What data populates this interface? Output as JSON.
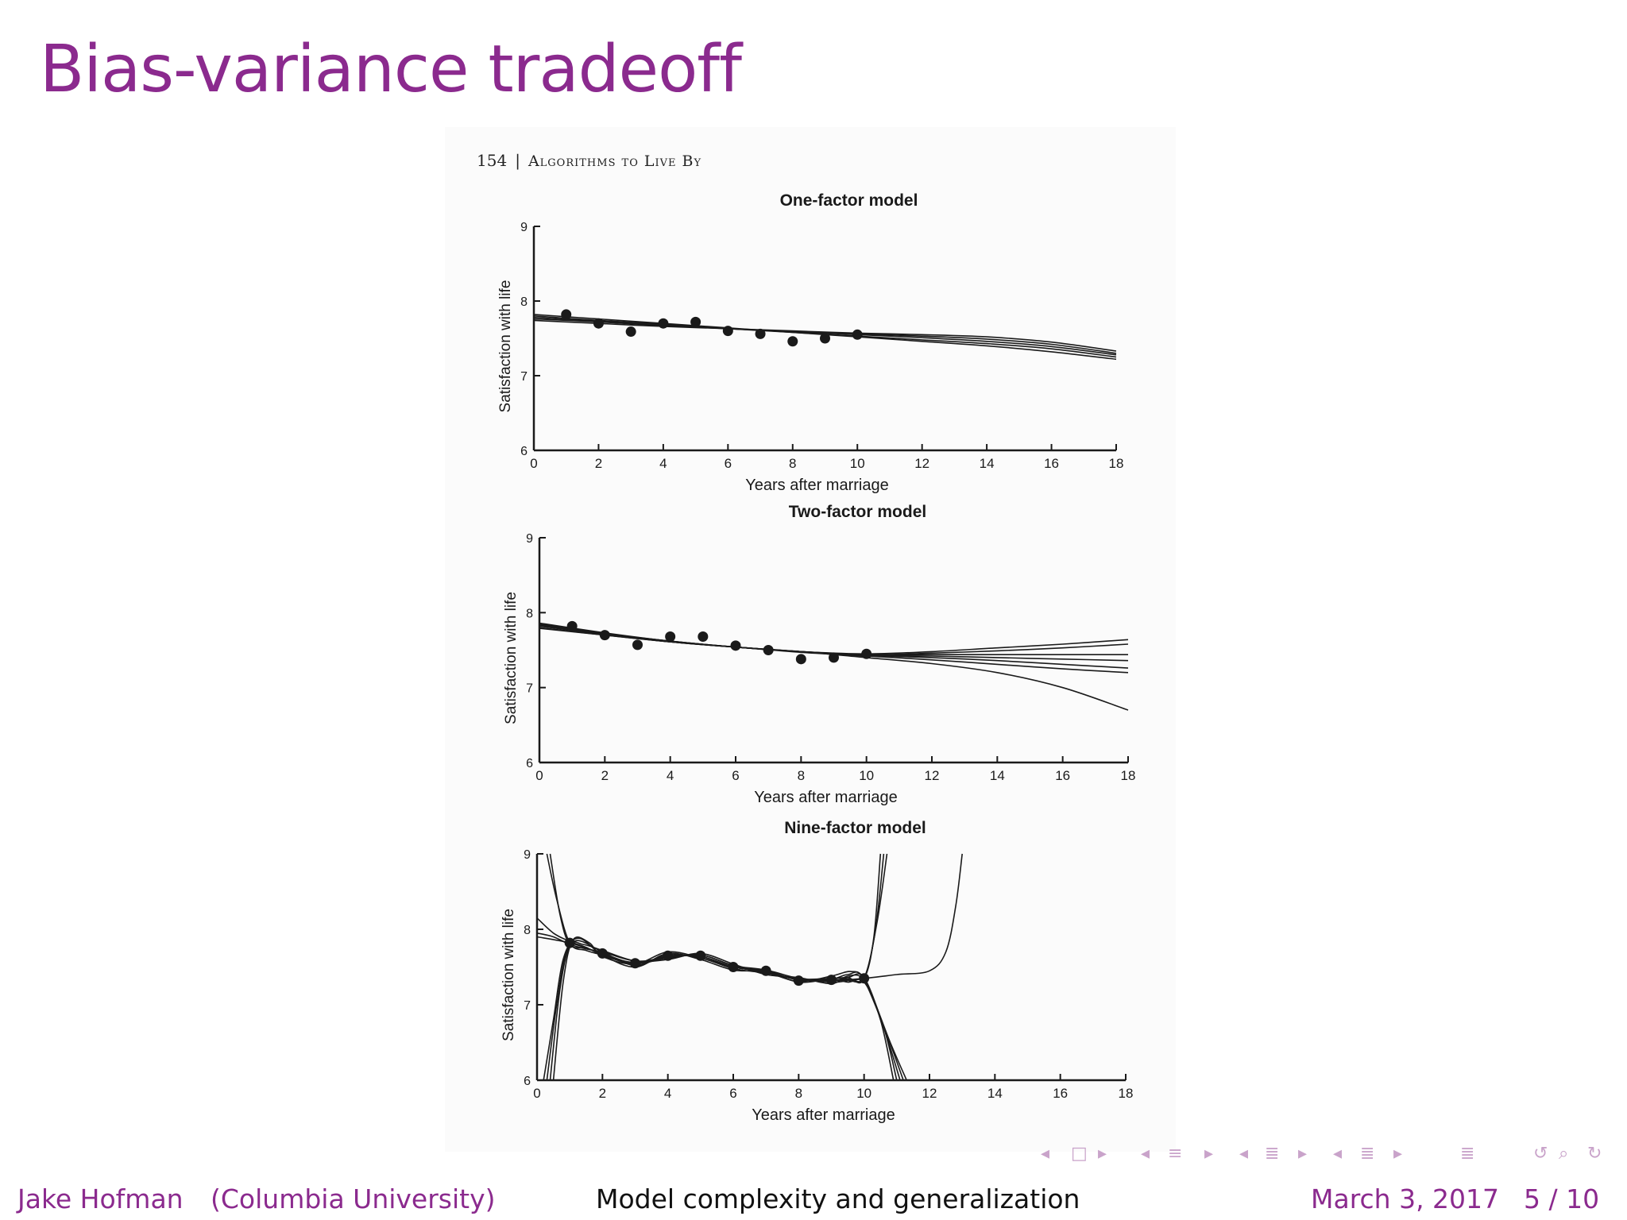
{
  "slide": {
    "title": "Bias-variance tradeoff"
  },
  "book_page": {
    "page_number": "154",
    "separator": "|",
    "running_head": "Algorithms to Live By"
  },
  "colors": {
    "accent": "#8b2a8e",
    "ink": "#1a1a1a",
    "nav": "#c9a3ca"
  },
  "nav_icons": [
    "arrow-left-icon",
    "frame-icon",
    "arrow-right-icon",
    "arrow-left-icon",
    "subsection-icon",
    "arrow-right-icon",
    "arrow-left-icon",
    "section-icon",
    "arrow-right-icon",
    "arrow-left-icon",
    "outline-icon",
    "arrow-right-icon",
    "outline-icon",
    "undo-icon",
    "search-icon",
    "redo-icon"
  ],
  "footer": {
    "author": "Jake Hofman",
    "institution": "(Columbia University)",
    "talk_title": "Model complexity and generalization",
    "date": "March 3, 2017",
    "page": "5 / 10"
  },
  "chart_data": [
    {
      "type": "line",
      "title": "One-factor model",
      "xlabel": "Years after marriage",
      "ylabel": "Satisfaction with life",
      "xlim": [
        0,
        18
      ],
      "ylim": [
        6,
        9
      ],
      "xticks": [
        0,
        2,
        4,
        6,
        8,
        10,
        12,
        14,
        16,
        18
      ],
      "yticks": [
        6,
        7,
        8,
        9
      ],
      "points": {
        "x": [
          1,
          2,
          3,
          4,
          5,
          6,
          7,
          8,
          9,
          10
        ],
        "y": [
          7.82,
          7.7,
          7.59,
          7.7,
          7.72,
          7.6,
          7.56,
          7.46,
          7.5,
          7.55
        ]
      },
      "fits": [
        {
          "x": [
            0,
            2,
            4,
            6,
            8,
            10,
            12,
            14,
            16,
            18
          ],
          "y": [
            7.82,
            7.76,
            7.7,
            7.64,
            7.58,
            7.52,
            7.46,
            7.4,
            7.32,
            7.22
          ]
        },
        {
          "x": [
            0,
            2,
            4,
            6,
            8,
            10,
            12,
            14,
            16,
            18
          ],
          "y": [
            7.8,
            7.74,
            7.69,
            7.63,
            7.58,
            7.53,
            7.48,
            7.43,
            7.36,
            7.25
          ]
        },
        {
          "x": [
            0,
            2,
            4,
            6,
            8,
            10,
            12,
            14,
            16,
            18
          ],
          "y": [
            7.78,
            7.73,
            7.68,
            7.63,
            7.59,
            7.55,
            7.51,
            7.46,
            7.39,
            7.28
          ]
        },
        {
          "x": [
            0,
            2,
            4,
            6,
            8,
            10,
            12,
            14,
            16,
            18
          ],
          "y": [
            7.76,
            7.72,
            7.67,
            7.63,
            7.59,
            7.56,
            7.53,
            7.49,
            7.42,
            7.3
          ]
        },
        {
          "x": [
            0,
            2,
            4,
            6,
            8,
            10,
            12,
            14,
            16,
            18
          ],
          "y": [
            7.74,
            7.7,
            7.66,
            7.63,
            7.6,
            7.57,
            7.55,
            7.52,
            7.45,
            7.33
          ]
        }
      ]
    },
    {
      "type": "line",
      "title": "Two-factor model",
      "xlabel": "Years after marriage",
      "ylabel": "Satisfaction with life",
      "xlim": [
        0,
        18
      ],
      "ylim": [
        6,
        9
      ],
      "xticks": [
        0,
        2,
        4,
        6,
        8,
        10,
        12,
        14,
        16,
        18
      ],
      "yticks": [
        6,
        7,
        8,
        9
      ],
      "points": {
        "x": [
          1,
          2,
          3,
          4,
          5,
          6,
          7,
          8,
          9,
          10
        ],
        "y": [
          7.82,
          7.7,
          7.57,
          7.68,
          7.68,
          7.56,
          7.5,
          7.38,
          7.4,
          7.45
        ]
      },
      "fits": [
        {
          "x": [
            0,
            2,
            4,
            6,
            8,
            10,
            12,
            14,
            16,
            18
          ],
          "y": [
            7.86,
            7.73,
            7.62,
            7.54,
            7.48,
            7.45,
            7.48,
            7.53,
            7.58,
            7.64
          ]
        },
        {
          "x": [
            0,
            2,
            4,
            6,
            8,
            10,
            12,
            14,
            16,
            18
          ],
          "y": [
            7.85,
            7.72,
            7.62,
            7.54,
            7.48,
            7.44,
            7.46,
            7.49,
            7.53,
            7.58
          ]
        },
        {
          "x": [
            0,
            2,
            4,
            6,
            8,
            10,
            12,
            14,
            16,
            18
          ],
          "y": [
            7.84,
            7.72,
            7.62,
            7.54,
            7.48,
            7.44,
            7.44,
            7.44,
            7.44,
            7.44
          ]
        },
        {
          "x": [
            0,
            2,
            4,
            6,
            8,
            10,
            12,
            14,
            16,
            18
          ],
          "y": [
            7.83,
            7.71,
            7.61,
            7.54,
            7.48,
            7.43,
            7.42,
            7.4,
            7.38,
            7.36
          ]
        },
        {
          "x": [
            0,
            2,
            4,
            6,
            8,
            10,
            12,
            14,
            16,
            18
          ],
          "y": [
            7.82,
            7.71,
            7.61,
            7.54,
            7.48,
            7.43,
            7.4,
            7.36,
            7.31,
            7.26
          ]
        },
        {
          "x": [
            0,
            2,
            4,
            6,
            8,
            10,
            12,
            14,
            16,
            18
          ],
          "y": [
            7.8,
            7.7,
            7.61,
            7.54,
            7.48,
            7.4,
            7.32,
            7.2,
            7.0,
            6.7
          ]
        },
        {
          "x": [
            0,
            2,
            4,
            6,
            8,
            10,
            12,
            14,
            16,
            18
          ],
          "y": [
            7.79,
            7.7,
            7.61,
            7.54,
            7.47,
            7.42,
            7.37,
            7.31,
            7.25,
            7.2
          ]
        }
      ]
    },
    {
      "type": "line",
      "title": "Nine-factor model",
      "xlabel": "Years after marriage",
      "ylabel": "Satisfaction with life",
      "xlim": [
        0,
        18
      ],
      "ylim": [
        6,
        9
      ],
      "xticks": [
        0,
        2,
        4,
        6,
        8,
        10,
        12,
        14,
        16,
        18
      ],
      "yticks": [
        6,
        7,
        8,
        9
      ],
      "points": {
        "x": [
          1,
          2,
          3,
          4,
          5,
          6,
          7,
          8,
          9,
          10
        ],
        "y": [
          7.82,
          7.68,
          7.55,
          7.65,
          7.65,
          7.5,
          7.45,
          7.32,
          7.33,
          7.35
        ]
      },
      "fits": [
        {
          "x": [
            0.3,
            0.6,
            1,
            1.5,
            2,
            3,
            4,
            5,
            6,
            7,
            8,
            9,
            9.5,
            10,
            10.3,
            10.5
          ],
          "y": [
            9.0,
            8.4,
            7.82,
            7.72,
            7.66,
            7.56,
            7.64,
            7.64,
            7.5,
            7.44,
            7.33,
            7.33,
            7.34,
            7.35,
            7.9,
            9.0
          ]
        },
        {
          "x": [
            0.4,
            0.7,
            1,
            1.5,
            2,
            3,
            4,
            5,
            6,
            7,
            8,
            9,
            9.5,
            10,
            10.35,
            10.6
          ],
          "y": [
            9.0,
            8.2,
            7.8,
            7.75,
            7.68,
            7.55,
            7.62,
            7.66,
            7.52,
            7.46,
            7.35,
            7.3,
            7.32,
            7.36,
            8.0,
            9.0
          ]
        },
        {
          "x": [
            0.2,
            0.5,
            0.8,
            1.2,
            2,
            3,
            4,
            5,
            6,
            7,
            8,
            9,
            9.5,
            10,
            10.4,
            10.7
          ],
          "y": [
            6.0,
            6.8,
            7.6,
            7.85,
            7.7,
            7.52,
            7.66,
            7.62,
            7.48,
            7.42,
            7.34,
            7.35,
            7.36,
            7.34,
            8.1,
            9.0
          ]
        },
        {
          "x": [
            0.3,
            0.6,
            0.9,
            1.3,
            2,
            3,
            4,
            5,
            6,
            7,
            8,
            9,
            9.5,
            10,
            10.5,
            10.9
          ],
          "y": [
            6.0,
            7.0,
            7.7,
            7.88,
            7.66,
            7.5,
            7.68,
            7.6,
            7.46,
            7.44,
            7.3,
            7.34,
            7.3,
            7.3,
            6.8,
            6.0
          ]
        },
        {
          "x": [
            0.4,
            0.7,
            1,
            1.4,
            2,
            3,
            4,
            5,
            6,
            7,
            8,
            9,
            9.5,
            10,
            10.6,
            11.0
          ],
          "y": [
            6.0,
            7.2,
            7.78,
            7.8,
            7.72,
            7.58,
            7.6,
            7.68,
            7.54,
            7.4,
            7.36,
            7.28,
            7.38,
            7.32,
            6.7,
            6.0
          ]
        },
        {
          "x": [
            0.5,
            0.8,
            1.1,
            1.6,
            2,
            3,
            4,
            5,
            6,
            7,
            8,
            9,
            9.6,
            10,
            10.7,
            11.2
          ],
          "y": [
            6.0,
            7.3,
            7.86,
            7.82,
            7.64,
            7.54,
            7.7,
            7.62,
            7.5,
            7.43,
            7.31,
            7.38,
            7.44,
            7.33,
            6.6,
            6.0
          ]
        },
        {
          "x": [
            0,
            0.5,
            1,
            1.5,
            2,
            3,
            4,
            5,
            6,
            7,
            8,
            9,
            9.5,
            10,
            10.8,
            11.3
          ],
          "y": [
            8.15,
            7.95,
            7.84,
            7.76,
            7.66,
            7.54,
            7.64,
            7.64,
            7.5,
            7.45,
            7.33,
            7.34,
            7.4,
            7.35,
            6.5,
            6.0
          ]
        },
        {
          "x": [
            0,
            0.5,
            1,
            1.5,
            2,
            3,
            4,
            5,
            6,
            7,
            8,
            9,
            9.5,
            10,
            10.6,
            11.1
          ],
          "y": [
            7.95,
            7.9,
            7.8,
            7.74,
            7.7,
            7.58,
            7.62,
            7.66,
            7.52,
            7.42,
            7.34,
            7.32,
            7.36,
            7.36,
            6.7,
            6.0
          ]
        },
        {
          "x": [
            0,
            1,
            2,
            3,
            4,
            5,
            6,
            7,
            8,
            9,
            10,
            11,
            12,
            12.5,
            12.8,
            13.0
          ],
          "y": [
            7.9,
            7.82,
            7.68,
            7.55,
            7.64,
            7.64,
            7.5,
            7.44,
            7.33,
            7.32,
            7.35,
            7.4,
            7.45,
            7.7,
            8.3,
            9.0
          ]
        }
      ]
    }
  ]
}
